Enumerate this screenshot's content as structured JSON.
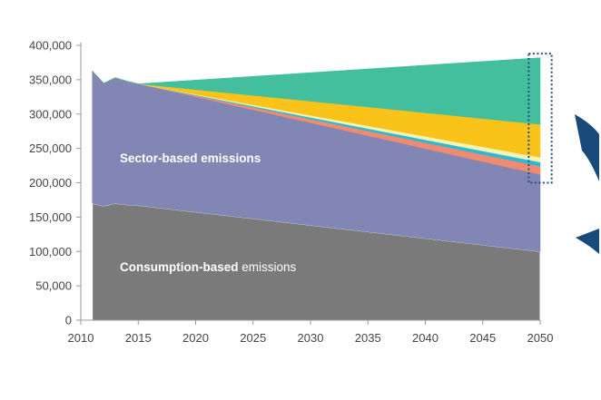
{
  "chart_data": {
    "type": "area",
    "title": "",
    "xlabel": "",
    "ylabel": "",
    "xlim": [
      2010,
      2050
    ],
    "ylim": [
      0,
      400000
    ],
    "x_ticks": [
      2010,
      2015,
      2020,
      2025,
      2030,
      2035,
      2040,
      2045,
      2050
    ],
    "y_ticks": [
      0,
      50000,
      100000,
      150000,
      200000,
      250000,
      300000,
      350000,
      400000
    ],
    "y_tick_labels": [
      "0",
      "50,000",
      "100,000",
      "150,000",
      "200,000",
      "250,000",
      "300,000",
      "350,000",
      "400,000"
    ],
    "grid": false,
    "legend": "none",
    "x": [
      2011,
      2012,
      2013,
      2014,
      2015,
      2050
    ],
    "series": [
      {
        "values": [
          170000,
          166000,
          170000,
          168000,
          167000,
          100000
        ],
        "color": "#7a7a7a"
      },
      {
        "values": [
          193000,
          179000,
          183000,
          180000,
          177000,
          112000
        ],
        "color": "#8286b5"
      },
      {
        "values": [
          0,
          0,
          0,
          0,
          0,
          12000
        ],
        "color": "#f08a70"
      },
      {
        "values": [
          0,
          0,
          0,
          0,
          0,
          6000
        ],
        "color": "#2db8d3"
      },
      {
        "values": [
          0,
          0,
          0,
          0,
          0,
          7000
        ],
        "color": "#f3f3b7"
      },
      {
        "values": [
          0,
          0,
          0,
          0,
          0,
          48000
        ],
        "color": "#f9c31a"
      },
      {
        "values": [
          0,
          0,
          0,
          0,
          0,
          97000
        ],
        "color": "#43bf9e"
      }
    ],
    "annotations": {
      "sector_label": "Sector-based emissions",
      "consumption_label_bold": "Consumption-based",
      "consumption_label_rest": " emissions"
    },
    "highlight_box": {
      "x_from": 2049,
      "x_to": 2051,
      "y_from": 200000,
      "y_to": 388000
    },
    "colors": {
      "axis": "#999999",
      "tick_text": "#444444",
      "highlight": "#1d4f86",
      "arrow": "#1a4a7a"
    }
  }
}
